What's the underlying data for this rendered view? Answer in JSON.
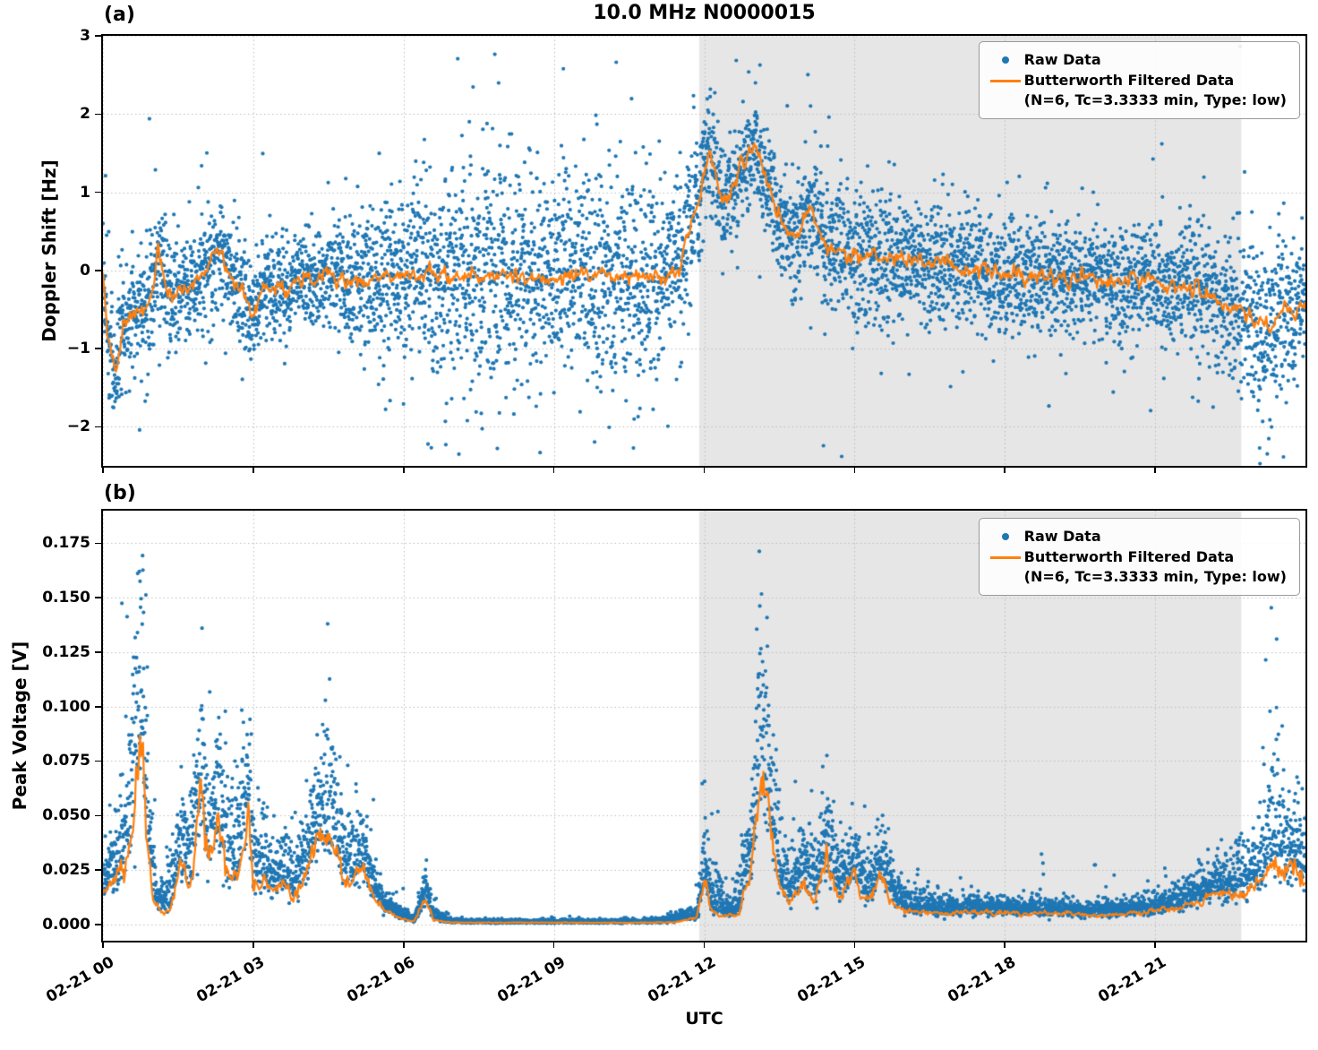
{
  "figure": {
    "title": "10.0 MHz N0000015",
    "xlabel": "UTC",
    "panel_a_label": "(a)",
    "panel_b_label": "(b)",
    "legend": {
      "raw": "Raw Data",
      "filtered_line1": "Butterworth Filtered Data",
      "filtered_line2": "(N=6, Tc=3.3333 min, Type: low)"
    },
    "colors": {
      "raw": "#1f77b4",
      "filtered": "#ff7f0e",
      "shade": "#e6e6e6",
      "grid": "#bcbcbc",
      "axis": "#000000"
    }
  },
  "chart_data": [
    {
      "panel": "a",
      "type": "scatter",
      "name": "Doppler Shift vs UTC",
      "ylabel": "Doppler Shift [Hz]",
      "ylim": [
        -2.5,
        3.0
      ],
      "yticks": [
        -2,
        -1,
        0,
        1,
        2,
        3
      ],
      "ytick_decimals": null,
      "xlim_hours": [
        0,
        24
      ],
      "xticks_hours": [
        0,
        3,
        6,
        9,
        12,
        15,
        18,
        21
      ],
      "xtick_labels": [
        "02-21 00",
        "02-21 03",
        "02-21 06",
        "02-21 09",
        "02-21 12",
        "02-21 15",
        "02-21 18",
        "02-21 21"
      ],
      "shade_hours": [
        11.9,
        22.72
      ],
      "grid": true,
      "legend_position": "upper right",
      "series": [
        {
          "name": "Raw Data",
          "style": "scatter"
        },
        {
          "name": "Butterworth Filtered Data (N=6, Tc=3.3333 min, Type: low)",
          "style": "line"
        }
      ],
      "filtered_trend": {
        "t": [
          0,
          0.1,
          0.25,
          0.4,
          0.6,
          0.8,
          1.0,
          1.1,
          1.3,
          1.6,
          2.0,
          2.3,
          2.6,
          3.0,
          3.2,
          3.6,
          4.0,
          4.5,
          5.0,
          6.0,
          7.0,
          8.0,
          9.0,
          10.0,
          11.0,
          11.5,
          11.8,
          12.1,
          12.4,
          12.7,
          13.0,
          13.3,
          13.6,
          13.9,
          14.1,
          14.4,
          15.0,
          16.0,
          17.0,
          18.0,
          19.0,
          20.0,
          21.0,
          22.0,
          22.6,
          23.0,
          23.3,
          23.6,
          23.8,
          24.0
        ],
        "v": [
          -0.1,
          -0.8,
          -1.35,
          -0.7,
          -0.5,
          -0.55,
          -0.2,
          0.35,
          -0.3,
          -0.25,
          -0.1,
          0.3,
          -0.15,
          -0.5,
          -0.2,
          -0.25,
          -0.1,
          -0.05,
          -0.15,
          -0.05,
          -0.1,
          -0.05,
          -0.1,
          -0.05,
          -0.1,
          0.0,
          0.7,
          1.5,
          0.85,
          1.3,
          1.6,
          1.05,
          0.5,
          0.4,
          0.85,
          0.3,
          0.2,
          0.15,
          0.05,
          -0.05,
          -0.1,
          -0.1,
          -0.15,
          -0.3,
          -0.5,
          -0.65,
          -0.75,
          -0.4,
          -0.6,
          -0.3
        ]
      },
      "filtered_jitter": 0.1,
      "filtered_jitter_mode": "additive",
      "scatter_spread": {
        "t": [
          0,
          0.3,
          0.7,
          1.0,
          1.2,
          1.6,
          2.0,
          2.5,
          3.0,
          3.5,
          4.0,
          4.5,
          5.0,
          5.5,
          6.0,
          6.5,
          7.0,
          8.0,
          9.0,
          10.0,
          11.0,
          11.5,
          12.0,
          12.5,
          13.0,
          13.5,
          14.0,
          14.5,
          15.0,
          16.0,
          17.0,
          18.0,
          19.0,
          20.0,
          21.0,
          22.0,
          22.8,
          23.3,
          24.0
        ],
        "s": [
          0.3,
          0.42,
          0.35,
          0.55,
          0.4,
          0.3,
          0.32,
          0.35,
          0.3,
          0.3,
          0.28,
          0.3,
          0.42,
          0.5,
          0.5,
          0.62,
          0.68,
          0.7,
          0.68,
          0.7,
          0.68,
          0.55,
          0.42,
          0.35,
          0.32,
          0.35,
          0.4,
          0.38,
          0.38,
          0.38,
          0.36,
          0.38,
          0.36,
          0.36,
          0.38,
          0.42,
          0.5,
          0.55,
          0.42
        ]
      },
      "scatter_points_per_hour": 265,
      "outlier_rate": 0.045,
      "one_sided": false,
      "clip_top": 2.6,
      "clip_bottom": -2.25
    },
    {
      "panel": "b",
      "type": "scatter",
      "name": "Peak Voltage vs UTC",
      "ylabel": "Peak Voltage [V]",
      "ylim": [
        -0.0075,
        0.19
      ],
      "yticks": [
        0.0,
        0.025,
        0.05,
        0.075,
        0.1,
        0.125,
        0.15,
        0.175
      ],
      "ytick_decimals": 3,
      "xlim_hours": [
        0,
        24
      ],
      "xticks_hours": [
        0,
        3,
        6,
        9,
        12,
        15,
        18,
        21
      ],
      "xtick_labels": [
        "02-21 00",
        "02-21 03",
        "02-21 06",
        "02-21 09",
        "02-21 12",
        "02-21 15",
        "02-21 18",
        "02-21 21"
      ],
      "shade_hours": [
        11.9,
        22.72
      ],
      "grid": true,
      "legend_position": "upper right",
      "series": [
        {
          "name": "Raw Data",
          "style": "scatter"
        },
        {
          "name": "Butterworth Filtered Data (N=6, Tc=3.3333 min, Type: low)",
          "style": "line"
        }
      ],
      "filtered_trend": {
        "t": [
          0,
          0.2,
          0.4,
          0.6,
          0.75,
          0.85,
          1.0,
          1.15,
          1.35,
          1.55,
          1.75,
          1.95,
          2.1,
          2.3,
          2.5,
          2.7,
          2.9,
          3.0,
          3.2,
          3.4,
          3.6,
          3.8,
          4.0,
          4.2,
          4.4,
          4.6,
          4.8,
          5.0,
          5.2,
          5.4,
          5.6,
          5.9,
          6.2,
          6.45,
          6.6,
          6.9,
          7.5,
          8.5,
          9.5,
          10.5,
          11.4,
          11.85,
          12.0,
          12.15,
          12.4,
          12.7,
          12.95,
          13.1,
          13.3,
          13.5,
          13.75,
          14.0,
          14.2,
          14.45,
          14.7,
          15.0,
          15.25,
          15.55,
          15.8,
          16.2,
          16.8,
          17.5,
          18.2,
          19.0,
          19.8,
          20.5,
          21.0,
          21.5,
          22.0,
          22.4,
          22.8,
          23.1,
          23.35,
          23.55,
          23.75,
          24.0
        ],
        "v": [
          0.013,
          0.018,
          0.025,
          0.045,
          0.088,
          0.05,
          0.012,
          0.006,
          0.008,
          0.028,
          0.018,
          0.056,
          0.028,
          0.045,
          0.022,
          0.02,
          0.05,
          0.015,
          0.022,
          0.014,
          0.02,
          0.013,
          0.022,
          0.03,
          0.04,
          0.036,
          0.022,
          0.018,
          0.03,
          0.013,
          0.007,
          0.003,
          0.0012,
          0.013,
          0.002,
          0.001,
          0.0008,
          0.0008,
          0.0008,
          0.0008,
          0.0009,
          0.003,
          0.022,
          0.006,
          0.004,
          0.005,
          0.028,
          0.065,
          0.05,
          0.018,
          0.011,
          0.022,
          0.012,
          0.03,
          0.013,
          0.022,
          0.01,
          0.024,
          0.008,
          0.006,
          0.005,
          0.006,
          0.005,
          0.005,
          0.004,
          0.005,
          0.006,
          0.008,
          0.012,
          0.015,
          0.014,
          0.019,
          0.03,
          0.022,
          0.027,
          0.02
        ]
      },
      "filtered_jitter": 0.22,
      "filtered_jitter_mode": "relative",
      "scatter_spread": {
        "t": [
          0,
          0.4,
          0.75,
          1.1,
          1.5,
          1.95,
          2.3,
          2.9,
          3.4,
          4.0,
          4.5,
          5.0,
          5.6,
          6.2,
          6.45,
          6.9,
          7.5,
          9.0,
          11.0,
          11.85,
          12.05,
          12.5,
          13.0,
          13.1,
          13.4,
          13.8,
          14.3,
          14.8,
          15.3,
          15.8,
          16.5,
          17.5,
          18.5,
          19.5,
          20.5,
          21.3,
          22.0,
          22.7,
          23.1,
          23.35,
          23.6,
          24.0
        ],
        "s": [
          0.01,
          0.02,
          0.055,
          0.006,
          0.02,
          0.028,
          0.025,
          0.028,
          0.012,
          0.015,
          0.028,
          0.015,
          0.006,
          0.0015,
          0.006,
          0.001,
          0.0008,
          0.0008,
          0.0008,
          0.004,
          0.014,
          0.004,
          0.02,
          0.06,
          0.022,
          0.012,
          0.018,
          0.012,
          0.015,
          0.008,
          0.005,
          0.004,
          0.004,
          0.004,
          0.004,
          0.005,
          0.008,
          0.012,
          0.015,
          0.045,
          0.018,
          0.018
        ]
      },
      "scatter_points_per_hour": 245,
      "outlier_rate": 0.04,
      "one_sided": true,
      "clip_top": 0.17,
      "clip_bottom": 0.0004
    }
  ]
}
